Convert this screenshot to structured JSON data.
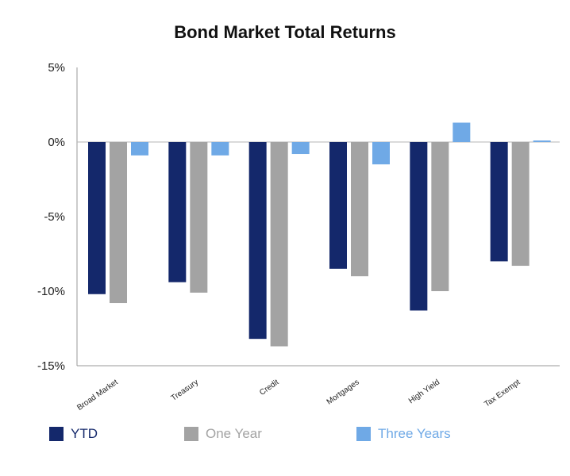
{
  "chart_data": {
    "type": "bar",
    "title": "Bond Market Total Returns",
    "categories": [
      "Broad Market",
      "Treasury",
      "Credit",
      "Mortgages",
      "High Yield",
      "Tax Exempt"
    ],
    "series": [
      {
        "name": "YTD",
        "color": "#14286b",
        "values": [
          -10.2,
          -9.4,
          -13.2,
          -8.5,
          -11.3,
          -8.0
        ]
      },
      {
        "name": "One Year",
        "color": "#a3a3a3",
        "values": [
          -10.8,
          -10.1,
          -13.7,
          -9.0,
          -10.0,
          -8.3
        ]
      },
      {
        "name": "Three Years",
        "color": "#6fa9e6",
        "values": [
          -0.9,
          -0.9,
          -0.8,
          -1.5,
          1.3,
          0.1
        ]
      }
    ],
    "y_ticks": [
      "5%",
      "0%",
      "-5%",
      "-10%",
      "-15%"
    ],
    "y_tick_values": [
      5,
      0,
      -5,
      -10,
      -15
    ],
    "ylim": [
      -15,
      5
    ],
    "legend_position": "bottom",
    "grid": false
  }
}
